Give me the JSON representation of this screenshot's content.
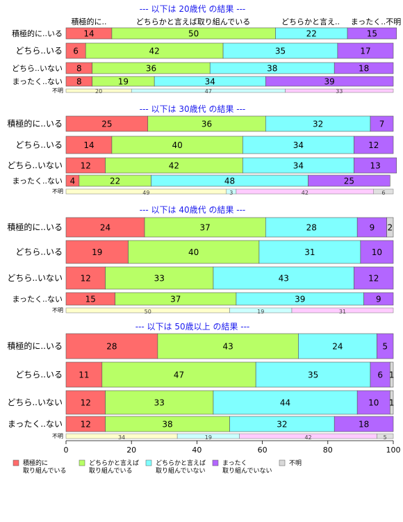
{
  "chart_data": {
    "type": "bar",
    "orientation": "horizontal",
    "stacked": "percent",
    "xlim": [
      0,
      100
    ],
    "x_ticks": [
      0,
      20,
      40,
      60,
      80,
      100
    ],
    "column_headers": [
      "積極的に..",
      "どちらかと言えば取り組んでいる",
      "どちらかと言え..",
      "まったく..不明"
    ],
    "categories": [
      "積極的に..いる",
      "どちら..いる",
      "どちら..いない",
      "まったく..ない"
    ],
    "na_label": "不明",
    "series": [
      {
        "name": "積極的に\n取り組んでいる",
        "color": "#ff6b6b"
      },
      {
        "name": "どちらかと言えば\n取り組んでいる",
        "color": "#b8ff66"
      },
      {
        "name": "どちらかと言えば\n取り組んでいない",
        "color": "#80ffff"
      },
      {
        "name": "まったく\n取り組んでいない",
        "color": "#b366ff"
      },
      {
        "name": "不明",
        "color": "#d9d9d9"
      }
    ],
    "na_colors": [
      "#ffffcc",
      "#ccffff",
      "#ffccff",
      "#e0e0e0"
    ],
    "panels": [
      {
        "title": "--- 以下は 20歳代 の結果 ---",
        "rows": [
          [
            14,
            50,
            22,
            15,
            0
          ],
          [
            6,
            42,
            35,
            17,
            0
          ],
          [
            8,
            36,
            38,
            18,
            0
          ],
          [
            8,
            19,
            34,
            39,
            0
          ]
        ],
        "na": [
          20,
          47,
          33,
          0
        ]
      },
      {
        "title": "--- 以下は 30歳代 の結果 ---",
        "rows": [
          [
            25,
            36,
            32,
            7,
            0
          ],
          [
            14,
            40,
            34,
            12,
            0
          ],
          [
            12,
            42,
            34,
            13,
            0
          ],
          [
            4,
            22,
            48,
            25,
            0
          ]
        ],
        "na": [
          49,
          3,
          42,
          6
        ]
      },
      {
        "title": "--- 以下は 40歳代 の結果 ---",
        "rows": [
          [
            24,
            37,
            28,
            9,
            2
          ],
          [
            19,
            40,
            31,
            10,
            0
          ],
          [
            12,
            33,
            43,
            12,
            0
          ],
          [
            15,
            37,
            39,
            9,
            0
          ]
        ],
        "na": [
          50,
          19,
          31,
          0
        ]
      },
      {
        "title": "--- 以下は 50歳以上 の結果 ---",
        "rows": [
          [
            28,
            43,
            24,
            5,
            0
          ],
          [
            11,
            47,
            35,
            6,
            1
          ],
          [
            12,
            33,
            44,
            10,
            1
          ],
          [
            12,
            38,
            32,
            18,
            0
          ]
        ],
        "na": [
          34,
          19,
          42,
          5
        ]
      }
    ]
  }
}
